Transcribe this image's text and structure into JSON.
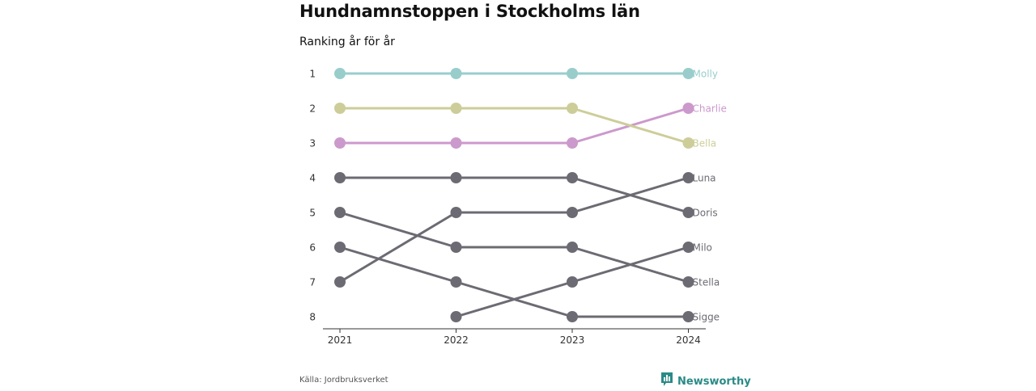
{
  "header": {
    "title": "Hundnamnstoppen i Stockholms län",
    "subtitle": "Ranking år för år"
  },
  "footer": {
    "source": "Källa: Jordbruksverket",
    "brand": "Newsworthy",
    "brand_icon": "bar-chart-logo-icon"
  },
  "colors": {
    "highlight_1": "#99cdcc",
    "highlight_2": "#cdcd9a",
    "highlight_3": "#cc99cc",
    "default": "#6c6b73",
    "axis": "#333333",
    "brand": "#2a8a86"
  },
  "chart_data": {
    "type": "line",
    "subtype": "bump",
    "x": [
      "2021",
      "2022",
      "2023",
      "2024"
    ],
    "y_ticks": [
      "1",
      "2",
      "3",
      "4",
      "5",
      "6",
      "7",
      "8"
    ],
    "y_direction": "reversed",
    "ylim": [
      1,
      8
    ],
    "grid": false,
    "legend": "direct labels at right end",
    "series": [
      {
        "name": "Molly",
        "ranks": [
          1,
          1,
          1,
          1
        ],
        "color": "#99cdcc"
      },
      {
        "name": "Charlie",
        "ranks": [
          3,
          3,
          3,
          2
        ],
        "color": "#cc99cc"
      },
      {
        "name": "Bella",
        "ranks": [
          2,
          2,
          2,
          3
        ],
        "color": "#cdcd9a"
      },
      {
        "name": "Luna",
        "ranks": [
          7,
          5,
          5,
          4
        ],
        "color": "#6c6b73"
      },
      {
        "name": "Doris",
        "ranks": [
          4,
          4,
          4,
          5
        ],
        "color": "#6c6b73"
      },
      {
        "name": "Milo",
        "ranks": [
          null,
          8,
          7,
          6
        ],
        "color": "#6c6b73"
      },
      {
        "name": "Stella",
        "ranks": [
          5,
          6,
          6,
          7
        ],
        "color": "#6c6b73"
      },
      {
        "name": "Sigge",
        "ranks": [
          6,
          7,
          8,
          8
        ],
        "color": "#6c6b73"
      }
    ]
  }
}
